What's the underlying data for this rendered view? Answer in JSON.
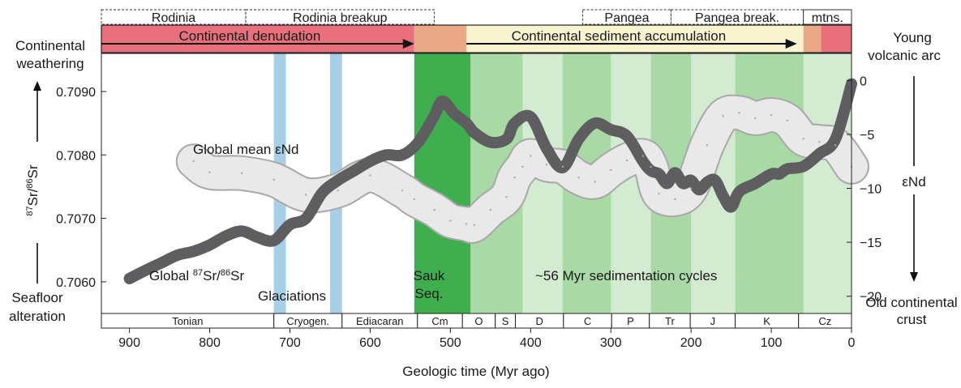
{
  "colors": {
    "denudation": "#e8707c",
    "accumulation": "#f7f4cf",
    "transition": "#eba888",
    "sauk": "#3fae4f",
    "cycle_dark": "#a9d9a5",
    "cycle_light": "#d3ebd0",
    "glaciation": "#a8cfe8",
    "sr_curve": "#5e5e60",
    "end_curve": "#e9e9ea",
    "end_stroke": "#a8a8a8"
  },
  "tectonic": [
    {
      "label": "Rodinia",
      "from": 935,
      "to": 755
    },
    {
      "label": "Rodinia breakup",
      "from": 755,
      "to": 520
    },
    {
      "label": "Pangea",
      "from": 335,
      "to": 225
    },
    {
      "label": "Pangea break.",
      "from": 225,
      "to": 60
    },
    {
      "label": "mtns.",
      "from": 60,
      "to": 0
    }
  ],
  "bars": {
    "denudation_label": "Continental denudation",
    "accumulation_label": "Continental sediment accumulation"
  },
  "left_axis": {
    "top_label": "Continental weathering",
    "bottom_label": "Seafloor alteration",
    "title": "87Sr/86Sr",
    "ticks": [
      "0.7090",
      "0.7080",
      "0.7070",
      "0.7060"
    ]
  },
  "right_axis": {
    "top_label": "Young volcanic arc",
    "bottom_label": "Old continental crust",
    "title": "εNd",
    "ticks": [
      "0",
      "−5",
      "−10",
      "−15",
      "−20"
    ]
  },
  "annotations": {
    "end_label": "Global mean εNd",
    "sr_label": "Global 87Sr/86Sr",
    "glaciations": "Glaciations",
    "sauk": "Sauk Seq.",
    "cycles": "~56 Myr sedimentation cycles"
  },
  "periods": [
    {
      "label": "Tonian",
      "from": 935,
      "to": 720
    },
    {
      "label": "Cryogen.",
      "from": 720,
      "to": 635
    },
    {
      "label": "Ediacaran",
      "from": 635,
      "to": 541
    },
    {
      "label": "Cm",
      "from": 541,
      "to": 485
    },
    {
      "label": "O",
      "from": 485,
      "to": 444
    },
    {
      "label": "S",
      "from": 444,
      "to": 419
    },
    {
      "label": "D",
      "from": 419,
      "to": 359
    },
    {
      "label": "C",
      "from": 359,
      "to": 299
    },
    {
      "label": "P",
      "from": 299,
      "to": 252
    },
    {
      "label": "Tr",
      "from": 252,
      "to": 201
    },
    {
      "label": "J",
      "from": 201,
      "to": 145
    },
    {
      "label": "K",
      "from": 145,
      "to": 66
    },
    {
      "label": "Cz",
      "from": 66,
      "to": 0
    }
  ],
  "x_axis": {
    "title": "Geologic time (Myr ago)",
    "ticks": [
      900,
      800,
      700,
      600,
      500,
      400,
      300,
      200,
      100,
      0
    ],
    "range": [
      935,
      0
    ]
  },
  "chart_data": {
    "type": "line",
    "xlabel": "Geologic time (Myr ago)",
    "ylabel": "87Sr/86Sr",
    "y2label": "εNd",
    "xlim": [
      935,
      0
    ],
    "ylim": [
      0.7055,
      0.7096
    ],
    "y2lim": [
      -21.6,
      2.5
    ],
    "glaciations": [
      [
        720,
        705
      ],
      [
        650,
        635
      ]
    ],
    "sauk_interval": [
      545,
      475
    ],
    "cycle_bands": [
      [
        475,
        410
      ],
      [
        360,
        300
      ],
      [
        250,
        200
      ],
      [
        145,
        60
      ]
    ],
    "series": [
      {
        "name": "Global 87Sr/86Sr",
        "axis": "left",
        "x": [
          900,
          880,
          860,
          840,
          820,
          800,
          780,
          760,
          740,
          720,
          700,
          680,
          660,
          640,
          620,
          600,
          580,
          560,
          540,
          520,
          510,
          495,
          480,
          470,
          450,
          430,
          420,
          400,
          380,
          360,
          340,
          320,
          300,
          280,
          260,
          250,
          240,
          230,
          220,
          210,
          200,
          190,
          180,
          170,
          160,
          150,
          140,
          120,
          100,
          90,
          80,
          60,
          40,
          20,
          0
        ],
        "y": [
          0.70605,
          0.70618,
          0.7063,
          0.70642,
          0.70648,
          0.70658,
          0.70672,
          0.7068,
          0.7067,
          0.70665,
          0.7069,
          0.707,
          0.7074,
          0.7076,
          0.70775,
          0.7079,
          0.708,
          0.708,
          0.7082,
          0.70862,
          0.70885,
          0.70865,
          0.7085,
          0.70835,
          0.7082,
          0.70825,
          0.7085,
          0.7086,
          0.7081,
          0.7078,
          0.70825,
          0.7085,
          0.7084,
          0.7083,
          0.7079,
          0.70775,
          0.7077,
          0.70755,
          0.70772,
          0.70755,
          0.7076,
          0.70745,
          0.70757,
          0.7076,
          0.70735,
          0.70718,
          0.70742,
          0.70755,
          0.7077,
          0.7077,
          0.70778,
          0.70782,
          0.70802,
          0.70825,
          0.70912
        ]
      },
      {
        "name": "Global mean εNd",
        "axis": "right",
        "x": [
          820,
          800,
          760,
          720,
          680,
          640,
          600,
          560,
          545,
          520,
          500,
          480,
          470,
          450,
          430,
          420,
          410,
          400,
          380,
          360,
          340,
          320,
          300,
          280,
          260,
          250,
          240,
          220,
          200,
          180,
          160,
          140,
          120,
          100,
          80,
          60,
          40,
          20,
          0
        ],
        "y": [
          -7.5,
          -8.5,
          -8.6,
          -9.2,
          -10.6,
          -10.2,
          -8.8,
          -10.2,
          -11.0,
          -12.0,
          -13.0,
          -13.3,
          -13.4,
          -12.0,
          -10.8,
          -9.0,
          -8.0,
          -7.0,
          -7.8,
          -8.0,
          -9.0,
          -9.4,
          -8.3,
          -7.4,
          -7.0,
          -8.0,
          -10.5,
          -11.0,
          -10.0,
          -6.0,
          -3.3,
          -3.0,
          -3.5,
          -3.2,
          -3.7,
          -5.4,
          -5.7,
          -6.0,
          -8.0
        ]
      }
    ]
  }
}
